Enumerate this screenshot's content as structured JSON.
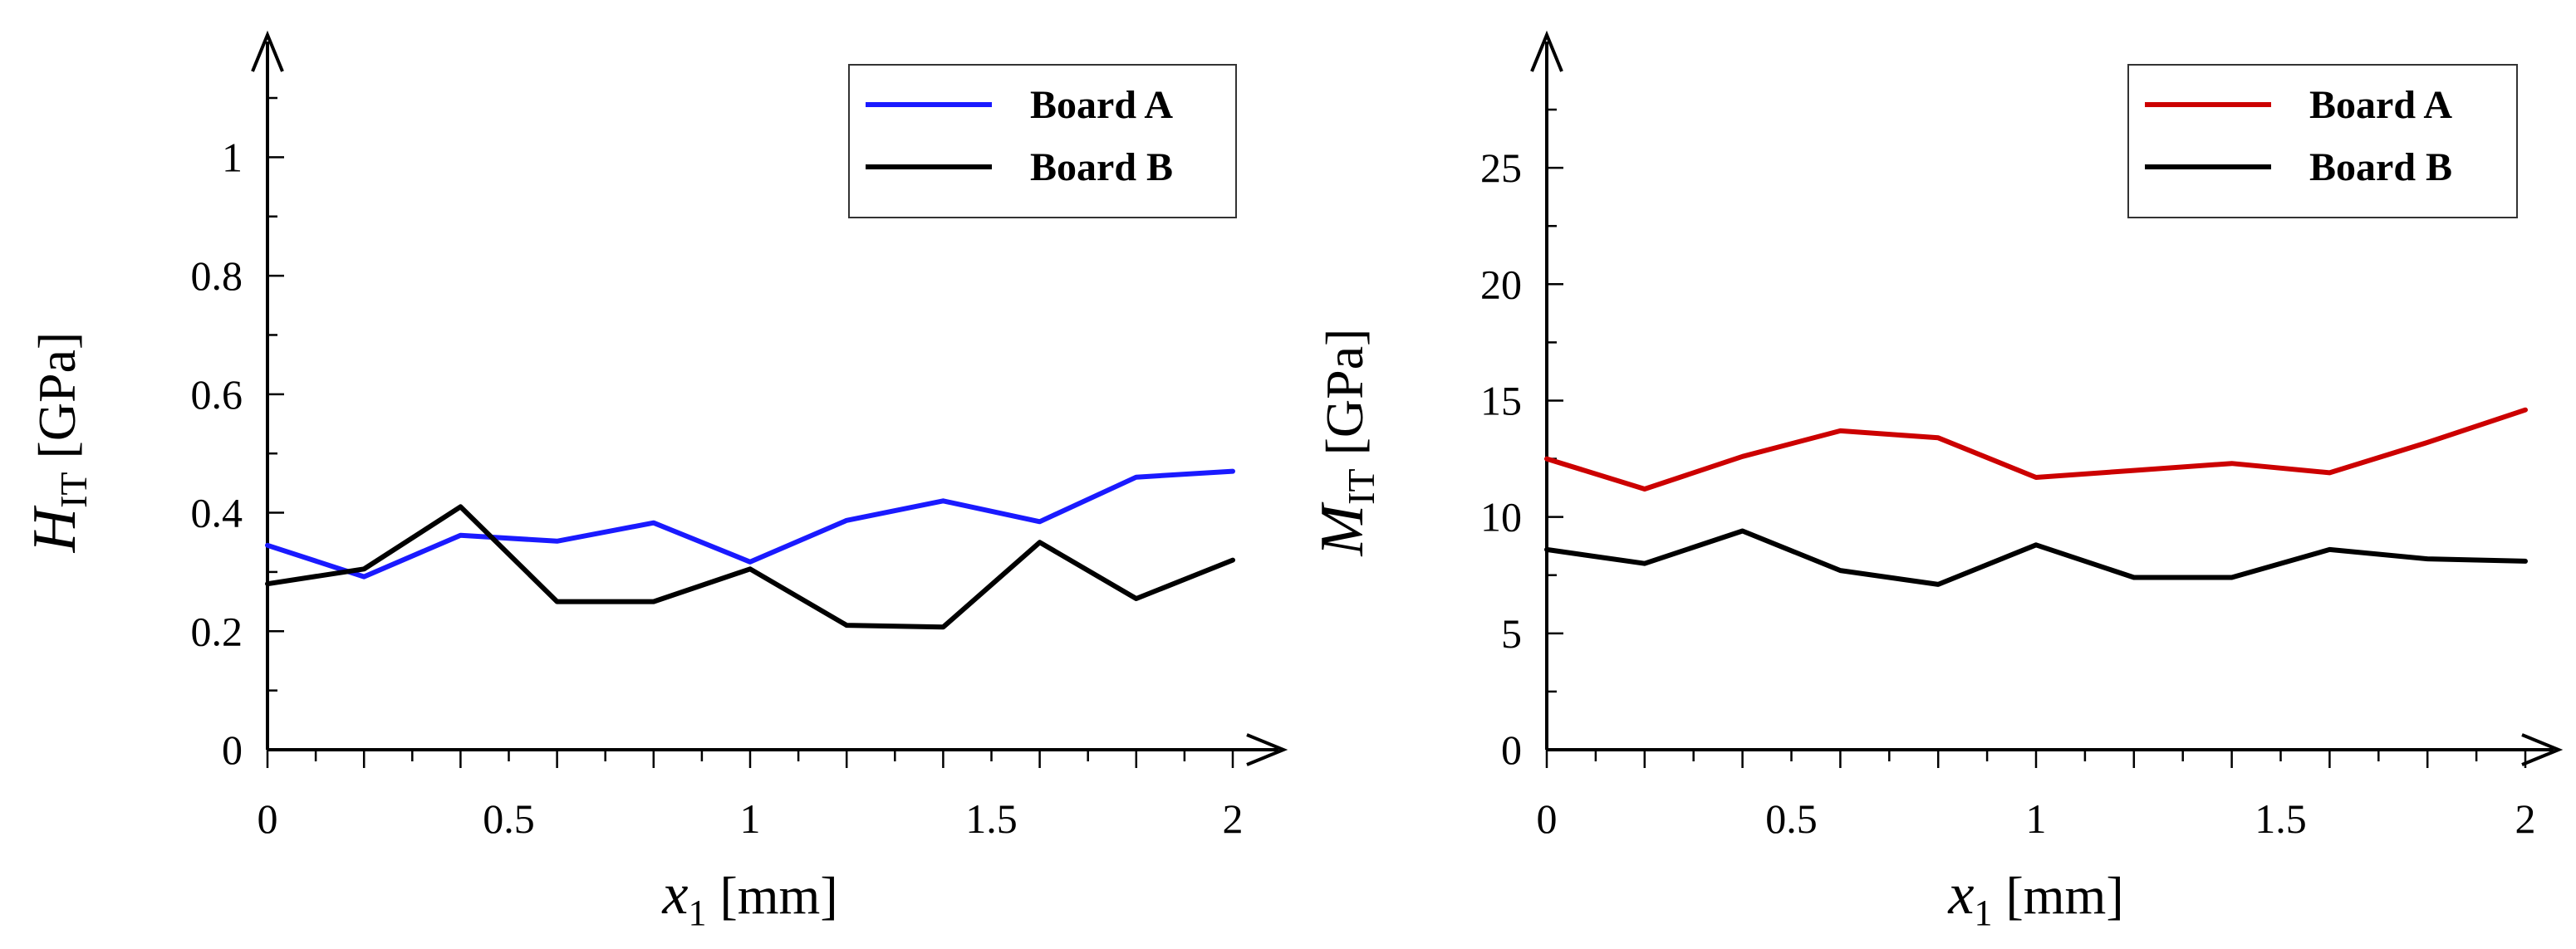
{
  "chart_data": [
    {
      "type": "line",
      "title": "",
      "ylabel_symbol": "H",
      "ylabel_subscript": "IT",
      "ylabel_unit": "[GPa]",
      "xlabel_symbol": "x",
      "xlabel_subscript": "1",
      "xlabel_unit": "[mm]",
      "xlim": [
        0,
        2
      ],
      "ylim": [
        0,
        1.1
      ],
      "xticks": [
        0,
        0.5,
        1,
        1.5,
        2
      ],
      "xtick_labels": [
        "0",
        "0.5",
        "1",
        "1.5",
        "2"
      ],
      "yticks": [
        0,
        0.2,
        0.4,
        0.6,
        0.8,
        1
      ],
      "ytick_labels": [
        "0",
        "0.2",
        "0.4",
        "0.6",
        "0.8",
        "1"
      ],
      "legend_position": "top-right",
      "x": [
        0,
        0.2,
        0.4,
        0.6,
        0.8,
        1.0,
        1.2,
        1.4,
        1.6,
        1.8,
        2.0
      ],
      "series": [
        {
          "name": "Board A",
          "color": "#1a1aff",
          "values": [
            0.345,
            0.292,
            0.362,
            0.352,
            0.383,
            0.317,
            0.387,
            0.42,
            0.385,
            0.46,
            0.47
          ]
        },
        {
          "name": "Board B",
          "color": "#000000",
          "values": [
            0.28,
            0.305,
            0.41,
            0.25,
            0.25,
            0.305,
            0.21,
            0.207,
            0.35,
            0.255,
            0.32
          ]
        }
      ]
    },
    {
      "type": "line",
      "title": "",
      "ylabel_symbol": "M",
      "ylabel_subscript": "IT",
      "ylabel_unit": "[GPa]",
      "xlabel_symbol": "x",
      "xlabel_subscript": "1",
      "xlabel_unit": "[mm]",
      "xlim": [
        0,
        2
      ],
      "ylim": [
        0,
        28
      ],
      "xticks": [
        0,
        0.5,
        1,
        1.5,
        2
      ],
      "xtick_labels": [
        "0",
        "0.5",
        "1",
        "1.5",
        "2"
      ],
      "yticks": [
        0,
        5,
        10,
        15,
        20,
        25
      ],
      "ytick_labels": [
        "0",
        "5",
        "10",
        "15",
        "20",
        "25"
      ],
      "legend_position": "top-right",
      "x": [
        0,
        0.2,
        0.4,
        0.6,
        0.8,
        1.0,
        1.2,
        1.4,
        1.6,
        1.8,
        2.0
      ],
      "series": [
        {
          "name": "Board A",
          "color": "#cc0000",
          "values": [
            12.5,
            11.2,
            12.6,
            13.7,
            13.4,
            11.7,
            12.0,
            12.3,
            11.9,
            13.2,
            14.6
          ]
        },
        {
          "name": "Board B",
          "color": "#000000",
          "values": [
            8.6,
            8.0,
            9.4,
            7.7,
            7.1,
            8.8,
            7.4,
            7.4,
            8.6,
            8.2,
            8.1
          ]
        }
      ]
    }
  ]
}
